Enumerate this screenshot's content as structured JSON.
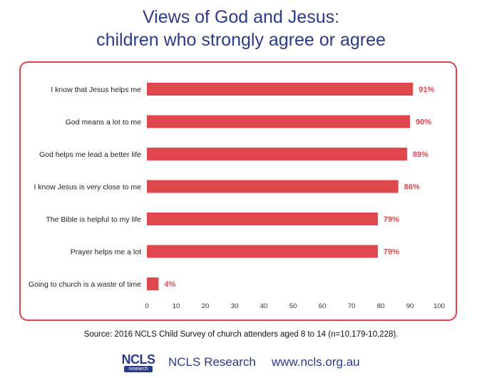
{
  "chart_data": {
    "type": "bar",
    "orientation": "horizontal",
    "title": "Views of God and Jesus:\nchildren who strongly agree or agree",
    "title_lines": [
      "Views of God and Jesus:",
      "children who strongly agree or agree"
    ],
    "categories": [
      "I know that Jesus helps me",
      "God means a lot to me",
      "God helps me lead a better life",
      "I know Jesus is very close to me",
      "The Bible is helpful to my life",
      "Prayer helps me a lot",
      "Going to church is a waste of time"
    ],
    "values": [
      91,
      90,
      89,
      86,
      79,
      79,
      4
    ],
    "value_labels": [
      "91%",
      "90%",
      "89%",
      "86%",
      "79%",
      "79%",
      "4%"
    ],
    "xlim": [
      0,
      100
    ],
    "xticks": [
      0,
      10,
      20,
      30,
      40,
      50,
      60,
      70,
      80,
      90,
      100
    ],
    "grid": false,
    "bar_color": "#e0464e",
    "label_color": "#e0464e",
    "frame_color": "#e0424a"
  },
  "source": "Source: 2016 NCLS Child Survey of church attenders aged 8 to 14 (n=10,179-10,228).",
  "footer": {
    "logo_word": "NCLS",
    "logo_sub": "research",
    "org": "NCLS Research",
    "url": "www.ncls.org.au"
  },
  "colors": {
    "title": "#2a3a8c",
    "brand": "#2a3a8c"
  }
}
